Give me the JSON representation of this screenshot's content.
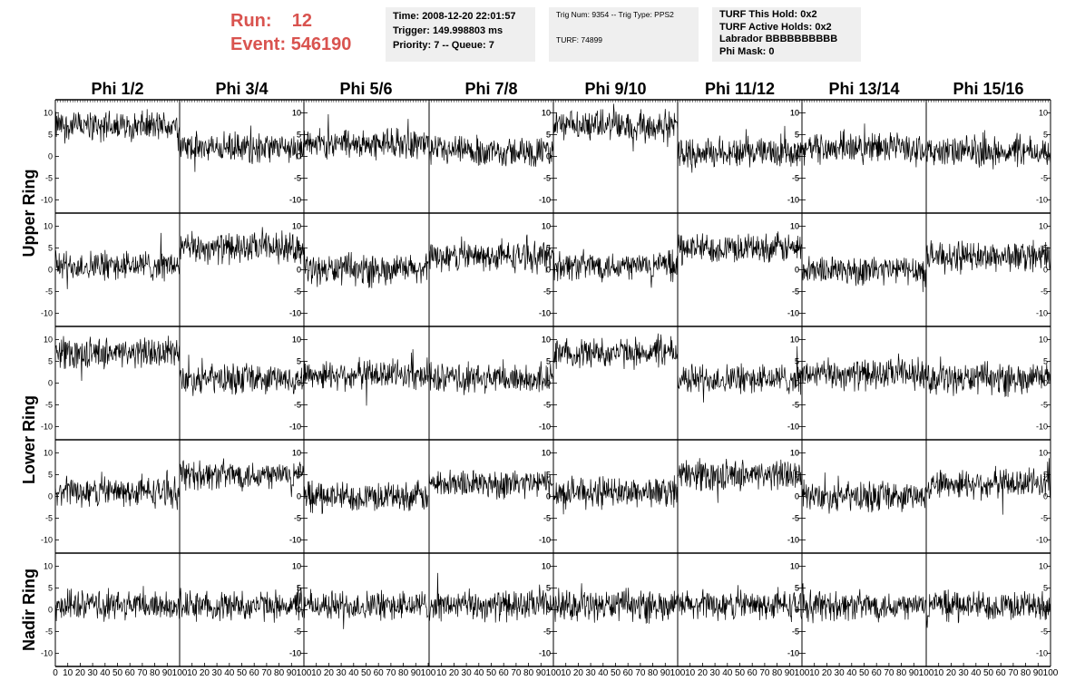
{
  "header": {
    "run_label": "Run:",
    "run_value": "12",
    "event_label": "Event:",
    "event_value": "546190"
  },
  "info": {
    "box1": [
      "Time: 2008-12-20 22:01:57",
      "Trigger: 149.998803 ms",
      "Priority: 7 -- Queue: 7"
    ],
    "box2": [
      "Trig Num: 9354 -- Trig Type: PPS2",
      "TURF: 74899"
    ],
    "box3": [
      "TURF This Hold: 0x2",
      "TURF Active Holds: 0x2",
      "Labrador BBBBBBBBBB",
      "Phi Mask: 0"
    ]
  },
  "colors": {
    "header_red": "#d9534f",
    "info_bg": "#efefef",
    "trace": "#000000"
  },
  "chart_data": {
    "type": "line",
    "columns": [
      "Phi 1/2",
      "Phi 3/4",
      "Phi 5/6",
      "Phi 7/8",
      "Phi 9/10",
      "Phi 11/12",
      "Phi 13/14",
      "Phi 15/16"
    ],
    "row_labels": [
      "Upper Ring",
      "Lower Ring",
      "Nadir Ring"
    ],
    "rows_per_ring_label": [
      2,
      2,
      1
    ],
    "xlim": [
      0,
      100
    ],
    "ylim": [
      -13,
      13
    ],
    "x_ticks": [
      0,
      10,
      20,
      30,
      40,
      50,
      60,
      70,
      80,
      90,
      100
    ],
    "y_ticks": [
      10,
      5,
      0,
      -5,
      -10
    ],
    "grid": false,
    "trace_baselines": [
      [
        7,
        2,
        3,
        1,
        7,
        1,
        2,
        1
      ],
      [
        1,
        5,
        0,
        3,
        1,
        5,
        0,
        3
      ],
      [
        7,
        1,
        2,
        1,
        7,
        1,
        2,
        1
      ],
      [
        1,
        5,
        0,
        3,
        1,
        5,
        0,
        3
      ],
      [
        1,
        1,
        1,
        1,
        1,
        1,
        1,
        1
      ]
    ],
    "trace_amplitude": 3.5
  }
}
